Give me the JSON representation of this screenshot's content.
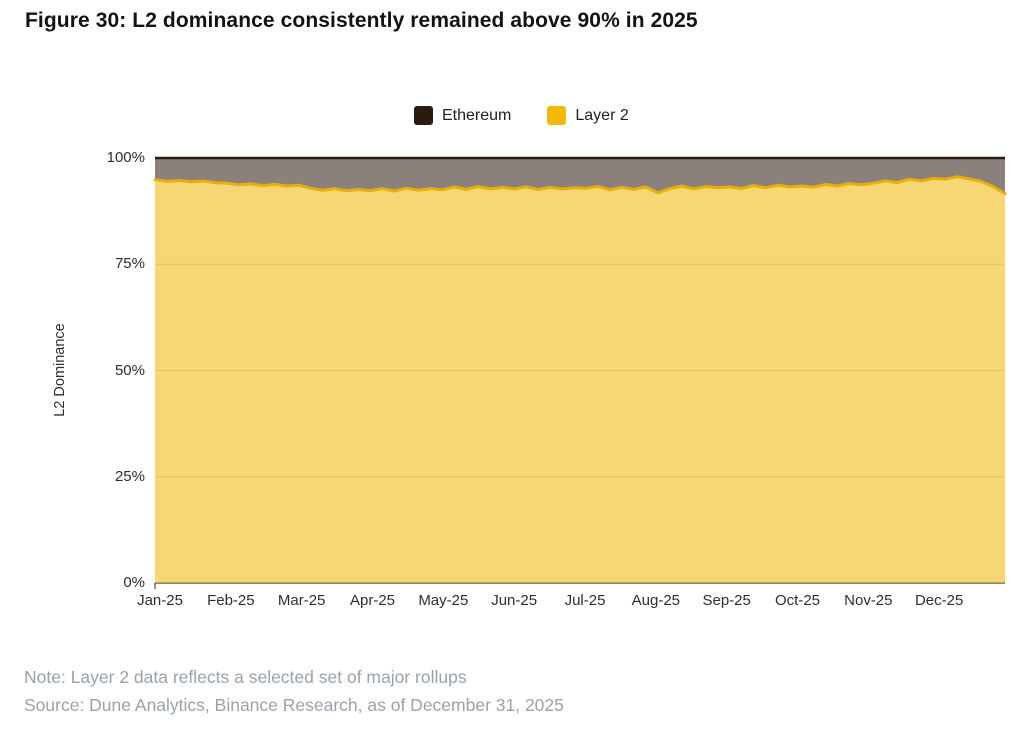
{
  "title": "Figure 30: L2 dominance consistently remained above 90% in 2025",
  "note": "Note: Layer 2 data reflects a selected set of major rollups",
  "source": "Source: Dune Analytics, Binance Research, as of December 31, 2025",
  "chart_data": {
    "type": "area",
    "stacked": true,
    "title": "Figure 30: L2 dominance consistently remained above 90% in 2025",
    "xlabel": "",
    "ylabel": "L2 Dominance",
    "ylim": [
      0,
      100
    ],
    "y_tick_labels": [
      "0%",
      "25%",
      "50%",
      "75%",
      "100%"
    ],
    "x_tick_labels": [
      "Jan-25",
      "Feb-25",
      "Mar-25",
      "Apr-25",
      "May-25",
      "Jun-25",
      "Jul-25",
      "Aug-25",
      "Sep-25",
      "Oct-25",
      "Nov-25",
      "Dec-25"
    ],
    "points_per_month": 6,
    "grid": "horizontal",
    "legend_position": "top-center",
    "legend": [
      {
        "label": "Ethereum",
        "color": "#2B1A10"
      },
      {
        "label": "Layer 2",
        "color": "#F0B90B"
      }
    ],
    "colors": {
      "layer2_fill": "#F0B90B",
      "layer2_fill_opacity": 0.57,
      "layer2_line": "#E8AF0C",
      "ethereum_fill": "#2B1A10",
      "ethereum_fill_opacity": 0.55,
      "top_line": "#281C12",
      "grid_line": "#CFCFCF",
      "axis_line": "#5F5F5F"
    },
    "series": [
      {
        "name": "Layer 2",
        "unit": "%",
        "values": [
          94.9,
          94.5,
          94.7,
          94.4,
          94.6,
          94.2,
          94.1,
          93.7,
          93.9,
          93.5,
          93.8,
          93.4,
          93.6,
          92.9,
          92.4,
          92.8,
          92.3,
          92.6,
          92.3,
          92.8,
          92.2,
          92.9,
          92.4,
          92.8,
          92.5,
          93.2,
          92.6,
          93.3,
          92.7,
          93.1,
          92.7,
          93.2,
          92.6,
          93.1,
          92.7,
          93.0,
          92.9,
          93.3,
          92.5,
          93.1,
          92.6,
          93.2,
          91.8,
          92.8,
          93.4,
          92.7,
          93.3,
          93.0,
          93.2,
          92.8,
          93.5,
          93.0,
          93.6,
          93.2,
          93.4,
          93.1,
          93.8,
          93.4,
          94.0,
          93.7,
          94.1,
          94.6,
          94.2,
          95.0,
          94.6,
          95.2,
          95.0,
          95.6,
          95.1,
          94.5,
          93.3,
          91.6
        ]
      },
      {
        "name": "Ethereum",
        "unit": "%",
        "values": [
          5.1,
          5.5,
          5.3,
          5.6,
          5.4,
          5.8,
          5.9,
          6.3,
          6.1,
          6.5,
          6.2,
          6.6,
          6.4,
          7.1,
          7.6,
          7.2,
          7.7,
          7.4,
          7.7,
          7.2,
          7.8,
          7.1,
          7.6,
          7.2,
          7.5,
          6.8,
          7.4,
          6.7,
          7.3,
          6.9,
          7.3,
          6.8,
          7.4,
          6.9,
          7.3,
          7.0,
          7.1,
          6.7,
          7.5,
          6.9,
          7.4,
          6.8,
          8.2,
          7.2,
          6.6,
          7.3,
          6.7,
          7.0,
          6.8,
          7.2,
          6.5,
          7.0,
          6.4,
          6.8,
          6.6,
          6.9,
          6.2,
          6.6,
          6.0,
          6.3,
          5.9,
          5.4,
          5.8,
          5.0,
          5.4,
          4.8,
          5.0,
          4.4,
          4.9,
          5.5,
          6.7,
          8.4
        ]
      }
    ]
  }
}
